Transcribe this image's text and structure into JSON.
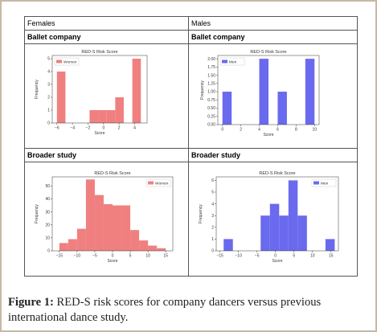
{
  "headers": {
    "left": "Females",
    "right": "Males"
  },
  "subheaders": {
    "ballet_left": "Ballet company",
    "ballet_right": "Ballet company",
    "broader_left": "Broader study",
    "broader_right": "Broader study"
  },
  "caption": {
    "label": "Figure 1:",
    "text": " RED-S risk scores for company dancers versus previous international dance study."
  },
  "chart_data": [
    {
      "id": "ballet-female",
      "type": "bar",
      "title": "RED-S Risk Score",
      "xlabel": "Score",
      "ylabel": "Frequency",
      "legend": "Women",
      "legend_position": "top-left",
      "color": "#f08080",
      "xlim": [
        -6.6,
        5.6
      ],
      "ylim": [
        0,
        5.25
      ],
      "xticks": [
        -6,
        -4,
        -2,
        0,
        2,
        4
      ],
      "yticks": [
        0,
        1,
        2,
        3,
        4,
        5
      ],
      "bins": [
        {
          "x0": -6,
          "x1": -4.9,
          "value": 4
        },
        {
          "x0": -1.8,
          "x1": -0.7,
          "value": 1
        },
        {
          "x0": -0.7,
          "x1": 0.4,
          "value": 1
        },
        {
          "x0": 0.4,
          "x1": 1.5,
          "value": 1
        },
        {
          "x0": 1.5,
          "x1": 2.6,
          "value": 2
        },
        {
          "x0": 3.7,
          "x1": 4.8,
          "value": 5
        }
      ]
    },
    {
      "id": "ballet-male",
      "type": "bar",
      "title": "RED-S Risk Score",
      "xlabel": "Score",
      "ylabel": "Frequency",
      "legend": "Men",
      "legend_position": "top-left",
      "color": "#6a6aee",
      "xlim": [
        -0.5,
        10.5
      ],
      "ylim": [
        0,
        2.1
      ],
      "xticks": [
        0,
        2,
        4,
        6,
        8,
        10
      ],
      "yticks": [
        "0.00",
        "0.25",
        "0.50",
        "0.75",
        "1.00",
        "1.25",
        "1.50",
        "1.75",
        "2.00"
      ],
      "bins": [
        {
          "x0": 0,
          "x1": 1,
          "value": 1
        },
        {
          "x0": 4,
          "x1": 5,
          "value": 2
        },
        {
          "x0": 6,
          "x1": 7,
          "value": 1
        },
        {
          "x0": 9,
          "x1": 10,
          "value": 2
        }
      ]
    },
    {
      "id": "broader-female",
      "type": "bar",
      "title": "RED-S Risk Score",
      "xlabel": "Score",
      "ylabel": "Frequency",
      "legend": "Women",
      "legend_position": "top-right",
      "color": "#f08080",
      "xlim": [
        -17,
        17
      ],
      "ylim": [
        0,
        57
      ],
      "xticks": [
        -15,
        -10,
        -5,
        0,
        5,
        10,
        15
      ],
      "yticks": [
        0,
        10,
        20,
        30,
        40,
        50
      ],
      "bins": [
        {
          "x0": -15,
          "x1": -12.5,
          "value": 6
        },
        {
          "x0": -12.5,
          "x1": -10,
          "value": 9
        },
        {
          "x0": -10,
          "x1": -7.5,
          "value": 17
        },
        {
          "x0": -7.5,
          "x1": -5,
          "value": 55
        },
        {
          "x0": -5,
          "x1": -2.5,
          "value": 43
        },
        {
          "x0": -2.5,
          "x1": 0,
          "value": 36
        },
        {
          "x0": 0,
          "x1": 2.5,
          "value": 35
        },
        {
          "x0": 2.5,
          "x1": 5,
          "value": 35
        },
        {
          "x0": 5,
          "x1": 7.5,
          "value": 16
        },
        {
          "x0": 7.5,
          "x1": 10,
          "value": 8
        },
        {
          "x0": 10,
          "x1": 12.5,
          "value": 4
        },
        {
          "x0": 12.5,
          "x1": 15,
          "value": 2
        }
      ]
    },
    {
      "id": "broader-male",
      "type": "bar",
      "title": "RED-S Risk Score",
      "xlabel": "Score",
      "ylabel": "Frequency",
      "legend": "Men",
      "legend_position": "top-right",
      "color": "#6a6aee",
      "xlim": [
        -16,
        17
      ],
      "ylim": [
        0,
        6.3
      ],
      "xticks": [
        -15,
        -10,
        -5,
        0,
        5,
        10,
        15
      ],
      "yticks": [
        0,
        1,
        2,
        3,
        4,
        5,
        6
      ],
      "bins": [
        {
          "x0": -14,
          "x1": -11.5,
          "value": 1
        },
        {
          "x0": -4,
          "x1": -1.5,
          "value": 3
        },
        {
          "x0": -1.5,
          "x1": 1,
          "value": 4
        },
        {
          "x0": 1,
          "x1": 3.5,
          "value": 3
        },
        {
          "x0": 3.5,
          "x1": 6,
          "value": 6
        },
        {
          "x0": 6,
          "x1": 8.5,
          "value": 3
        },
        {
          "x0": 13.5,
          "x1": 16,
          "value": 1
        }
      ]
    }
  ]
}
